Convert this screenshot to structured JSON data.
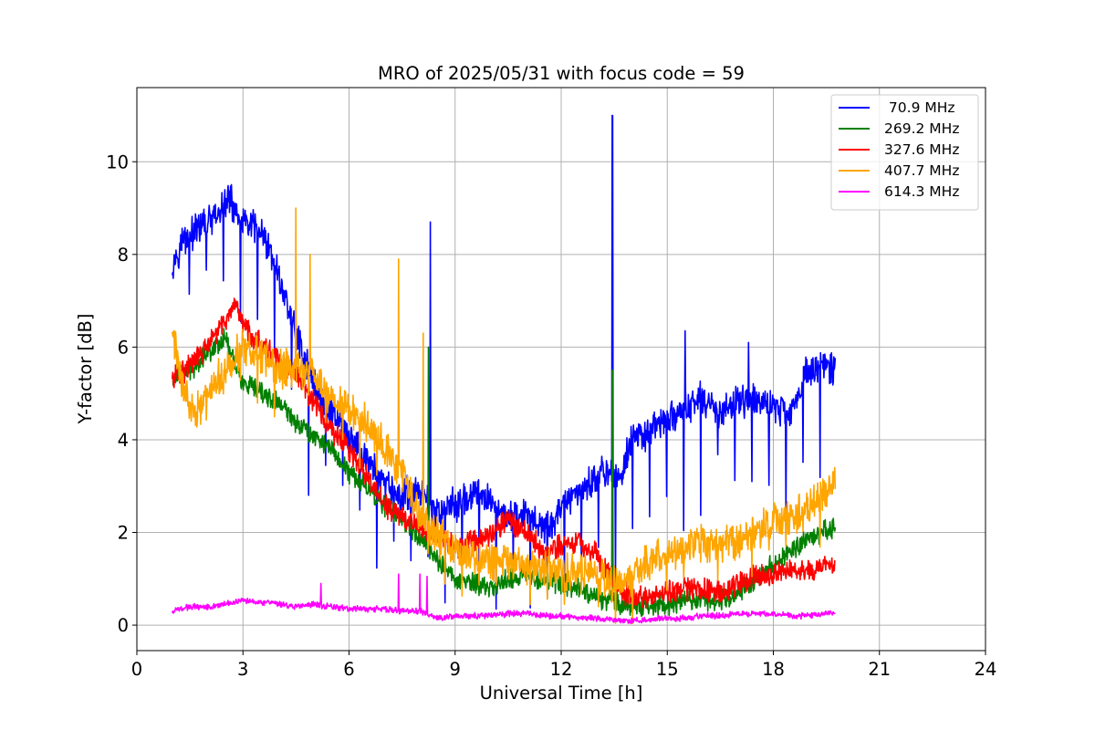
{
  "chart_data": {
    "type": "line",
    "title": "MRO of 2025/05/31 with focus code = 59",
    "xlabel": "Universal Time [h]",
    "ylabel": "Y-factor [dB]",
    "xlim": [
      0,
      24
    ],
    "ylim": [
      -0.55,
      11.6
    ],
    "xticks": [
      0,
      3,
      6,
      9,
      12,
      15,
      18,
      21,
      24
    ],
    "xtick_labels": [
      "0",
      "3",
      "6",
      "9",
      "12",
      "15",
      "18",
      "21",
      "24"
    ],
    "yticks": [
      0,
      2,
      4,
      6,
      8,
      10
    ],
    "ytick_labels": [
      "0",
      "2",
      "4",
      "6",
      "8",
      "10"
    ],
    "grid": true,
    "legend_position": "top-right",
    "x_range_covered": [
      1.0,
      19.75
    ],
    "series": [
      {
        "name": " 70.9 MHz",
        "color": "#0000ff",
        "x": [
          1.0,
          1.3,
          1.8,
          2.3,
          2.6,
          3.0,
          3.5,
          3.9,
          4.3,
          4.8,
          5.2,
          5.6,
          6.0,
          6.5,
          7.0,
          7.5,
          8.0,
          8.5,
          9.0,
          9.5,
          10.0,
          10.5,
          11.0,
          11.5,
          12.0,
          12.5,
          13.0,
          13.3,
          13.6,
          14.0,
          14.5,
          15.0,
          15.5,
          16.0,
          16.5,
          17.0,
          17.5,
          18.0,
          18.5,
          18.9,
          19.3,
          19.75
        ],
        "y": [
          7.8,
          8.3,
          8.6,
          8.8,
          9.2,
          8.7,
          8.5,
          7.8,
          6.8,
          5.6,
          4.9,
          4.6,
          4.0,
          3.6,
          3.0,
          2.8,
          2.9,
          2.4,
          2.6,
          2.8,
          2.7,
          2.3,
          2.4,
          2.0,
          2.5,
          2.9,
          3.2,
          3.4,
          3.1,
          4.0,
          4.2,
          4.4,
          4.7,
          4.9,
          4.6,
          4.8,
          4.9,
          4.7,
          4.6,
          5.4,
          5.6,
          5.5
        ],
        "spikes": [
          {
            "x": 8.3,
            "y": 8.7
          },
          {
            "x": 13.45,
            "y": 11.0
          },
          {
            "x": 15.5,
            "y": 6.35
          },
          {
            "x": 17.3,
            "y": 6.1
          }
        ]
      },
      {
        "name": "269.2 MHz",
        "color": "#008000",
        "x": [
          1.0,
          1.5,
          2.0,
          2.5,
          3.0,
          3.5,
          4.0,
          4.5,
          5.0,
          5.5,
          6.0,
          6.5,
          7.0,
          7.5,
          8.0,
          8.5,
          9.0,
          9.5,
          10.0,
          10.5,
          11.0,
          11.5,
          12.0,
          12.5,
          13.0,
          13.5,
          14.0,
          14.5,
          15.0,
          15.5,
          16.0,
          16.5,
          17.0,
          17.5,
          18.0,
          18.5,
          19.0,
          19.75
        ],
        "y": [
          5.3,
          5.5,
          5.9,
          6.2,
          5.2,
          5.0,
          4.8,
          4.4,
          4.1,
          3.8,
          3.3,
          3.0,
          2.6,
          2.3,
          1.9,
          1.4,
          1.0,
          0.9,
          0.8,
          1.0,
          1.1,
          1.0,
          0.9,
          0.8,
          0.6,
          0.5,
          0.4,
          0.4,
          0.45,
          0.5,
          0.6,
          0.5,
          0.7,
          1.0,
          1.3,
          1.6,
          1.9,
          2.1
        ],
        "spikes": [
          {
            "x": 8.25,
            "y": 6.0
          },
          {
            "x": 13.45,
            "y": 5.5
          }
        ]
      },
      {
        "name": "327.6 MHz",
        "color": "#ff0000",
        "x": [
          1.0,
          1.5,
          2.0,
          2.5,
          2.8,
          3.2,
          3.6,
          4.0,
          4.5,
          5.0,
          5.5,
          6.0,
          6.5,
          7.0,
          7.5,
          8.0,
          8.5,
          9.0,
          9.5,
          10.0,
          10.5,
          11.0,
          11.5,
          12.0,
          12.5,
          13.0,
          13.5,
          14.0,
          14.5,
          15.0,
          15.5,
          16.0,
          16.5,
          17.0,
          17.5,
          18.0,
          18.5,
          19.0,
          19.75
        ],
        "y": [
          5.3,
          5.6,
          6.0,
          6.6,
          6.8,
          6.3,
          6.0,
          5.7,
          5.4,
          4.8,
          4.2,
          3.8,
          3.2,
          2.6,
          2.3,
          2.2,
          1.9,
          1.7,
          1.8,
          2.0,
          2.3,
          2.0,
          1.6,
          1.7,
          1.8,
          1.5,
          0.9,
          0.6,
          0.6,
          0.7,
          0.8,
          0.8,
          0.7,
          0.9,
          1.1,
          1.1,
          1.2,
          1.2,
          1.3
        ]
      },
      {
        "name": "407.7 MHz",
        "color": "#ffa500",
        "x": [
          1.0,
          1.3,
          1.6,
          2.0,
          2.5,
          3.0,
          3.5,
          4.0,
          4.5,
          5.0,
          5.5,
          6.0,
          6.5,
          7.0,
          7.5,
          8.0,
          8.5,
          9.0,
          9.5,
          10.0,
          10.5,
          11.0,
          11.5,
          12.0,
          12.5,
          13.0,
          13.5,
          14.0,
          14.5,
          15.0,
          15.5,
          16.0,
          16.5,
          17.0,
          17.5,
          18.0,
          18.5,
          19.0,
          19.5,
          19.75
        ],
        "y": [
          6.3,
          5.2,
          4.6,
          4.9,
          5.5,
          6.0,
          5.8,
          5.5,
          5.6,
          5.4,
          4.9,
          4.7,
          4.3,
          3.9,
          3.3,
          2.3,
          1.9,
          1.6,
          1.5,
          1.4,
          1.3,
          1.2,
          1.3,
          1.1,
          1.2,
          1.1,
          0.9,
          1.0,
          1.4,
          1.5,
          1.6,
          1.8,
          1.7,
          1.9,
          2.0,
          2.2,
          2.3,
          2.5,
          3.0,
          3.0
        ],
        "spikes": [
          {
            "x": 4.5,
            "y": 9.0
          },
          {
            "x": 4.9,
            "y": 8.0
          },
          {
            "x": 7.4,
            "y": 7.9
          },
          {
            "x": 8.1,
            "y": 6.3
          }
        ]
      },
      {
        "name": "614.3 MHz",
        "color": "#ff00ff",
        "x": [
          1.0,
          1.5,
          2.0,
          2.5,
          3.0,
          3.5,
          4.0,
          4.5,
          5.0,
          5.5,
          6.0,
          6.5,
          7.0,
          7.5,
          8.0,
          8.5,
          9.0,
          9.5,
          10.0,
          10.5,
          11.0,
          11.5,
          12.0,
          12.5,
          13.0,
          13.5,
          14.0,
          14.5,
          15.0,
          15.5,
          16.0,
          16.5,
          17.0,
          17.5,
          18.0,
          18.5,
          19.0,
          19.5,
          19.75
        ],
        "y": [
          0.3,
          0.4,
          0.4,
          0.45,
          0.55,
          0.5,
          0.45,
          0.4,
          0.45,
          0.4,
          0.35,
          0.35,
          0.35,
          0.3,
          0.3,
          0.15,
          0.2,
          0.2,
          0.2,
          0.25,
          0.25,
          0.2,
          0.2,
          0.15,
          0.15,
          0.1,
          0.1,
          0.12,
          0.15,
          0.15,
          0.2,
          0.2,
          0.25,
          0.25,
          0.25,
          0.2,
          0.2,
          0.25,
          0.25
        ],
        "spikes": [
          {
            "x": 5.2,
            "y": 0.9
          },
          {
            "x": 7.4,
            "y": 1.1
          },
          {
            "x": 8.0,
            "y": 1.1
          },
          {
            "x": 8.2,
            "y": 1.05
          }
        ]
      }
    ]
  }
}
